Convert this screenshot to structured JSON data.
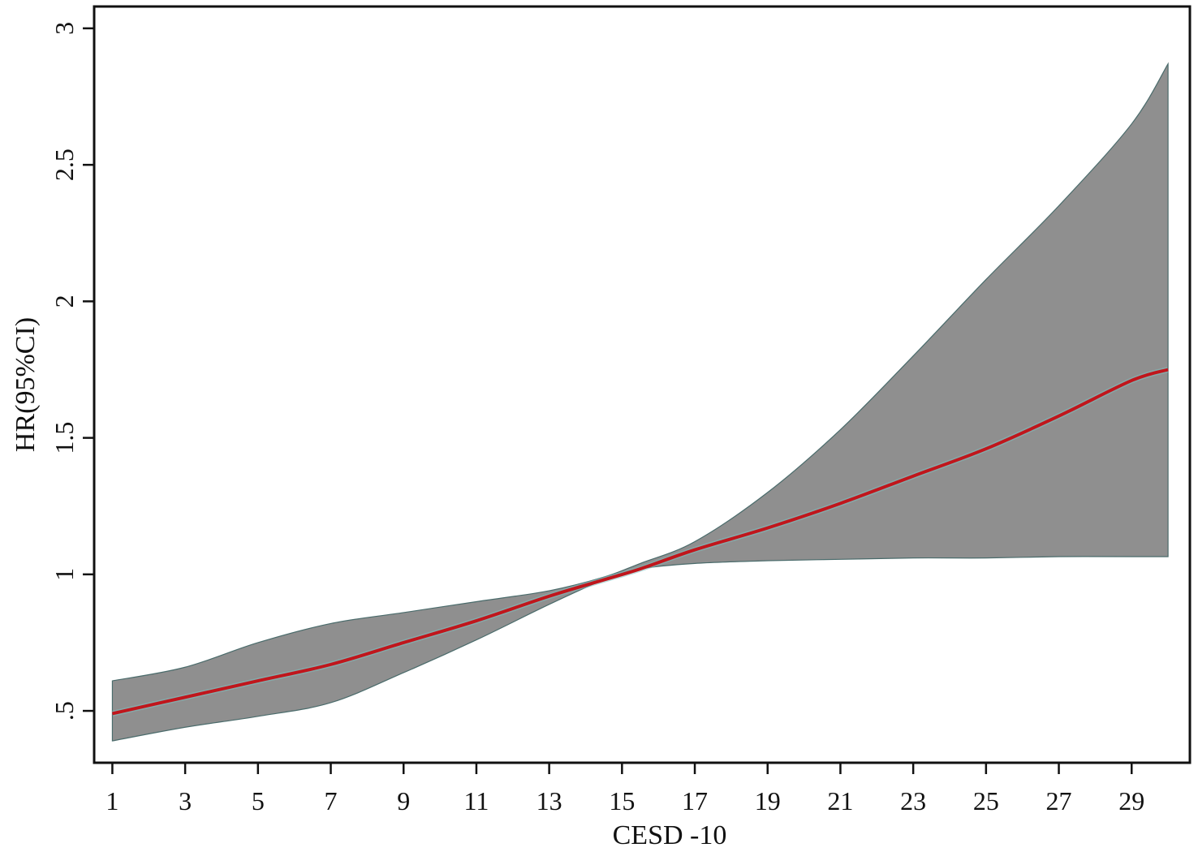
{
  "chart_data": {
    "type": "area",
    "xlabel": "CESD -10",
    "ylabel": "HR(95%CI)",
    "xlim": [
      0.5,
      30.6
    ],
    "ylim": [
      0.31,
      3.08
    ],
    "x_ticks": [
      1,
      3,
      5,
      7,
      9,
      11,
      13,
      15,
      17,
      19,
      21,
      23,
      25,
      27,
      29
    ],
    "y_ticks": [
      0.5,
      1,
      1.5,
      2,
      2.5,
      3
    ],
    "y_tick_labels": [
      ".5",
      "1",
      "1.5",
      "2",
      "2.5",
      "3"
    ],
    "grid": false,
    "colors": {
      "line": "#c0161c",
      "band": "#8f8f8f",
      "band_edge": "#4a6b6b",
      "axis": "#111111"
    },
    "x": [
      1,
      3,
      5,
      7,
      9,
      11,
      13,
      14.5,
      15.5,
      17,
      19,
      21,
      23,
      25,
      27,
      29,
      30
    ],
    "series": [
      {
        "role": "estimate",
        "values": [
          0.49,
          0.55,
          0.61,
          0.67,
          0.75,
          0.83,
          0.92,
          0.98,
          1.02,
          1.09,
          1.17,
          1.26,
          1.36,
          1.46,
          1.58,
          1.71,
          1.75
        ]
      },
      {
        "role": "upper",
        "values": [
          0.61,
          0.66,
          0.75,
          0.82,
          0.86,
          0.9,
          0.94,
          0.99,
          1.04,
          1.12,
          1.3,
          1.53,
          1.8,
          2.08,
          2.35,
          2.65,
          2.87
        ]
      },
      {
        "role": "lower",
        "values": [
          0.39,
          0.44,
          0.48,
          0.53,
          0.64,
          0.76,
          0.89,
          0.98,
          1.02,
          1.04,
          1.05,
          1.055,
          1.06,
          1.06,
          1.065,
          1.065,
          1.065
        ]
      }
    ]
  }
}
